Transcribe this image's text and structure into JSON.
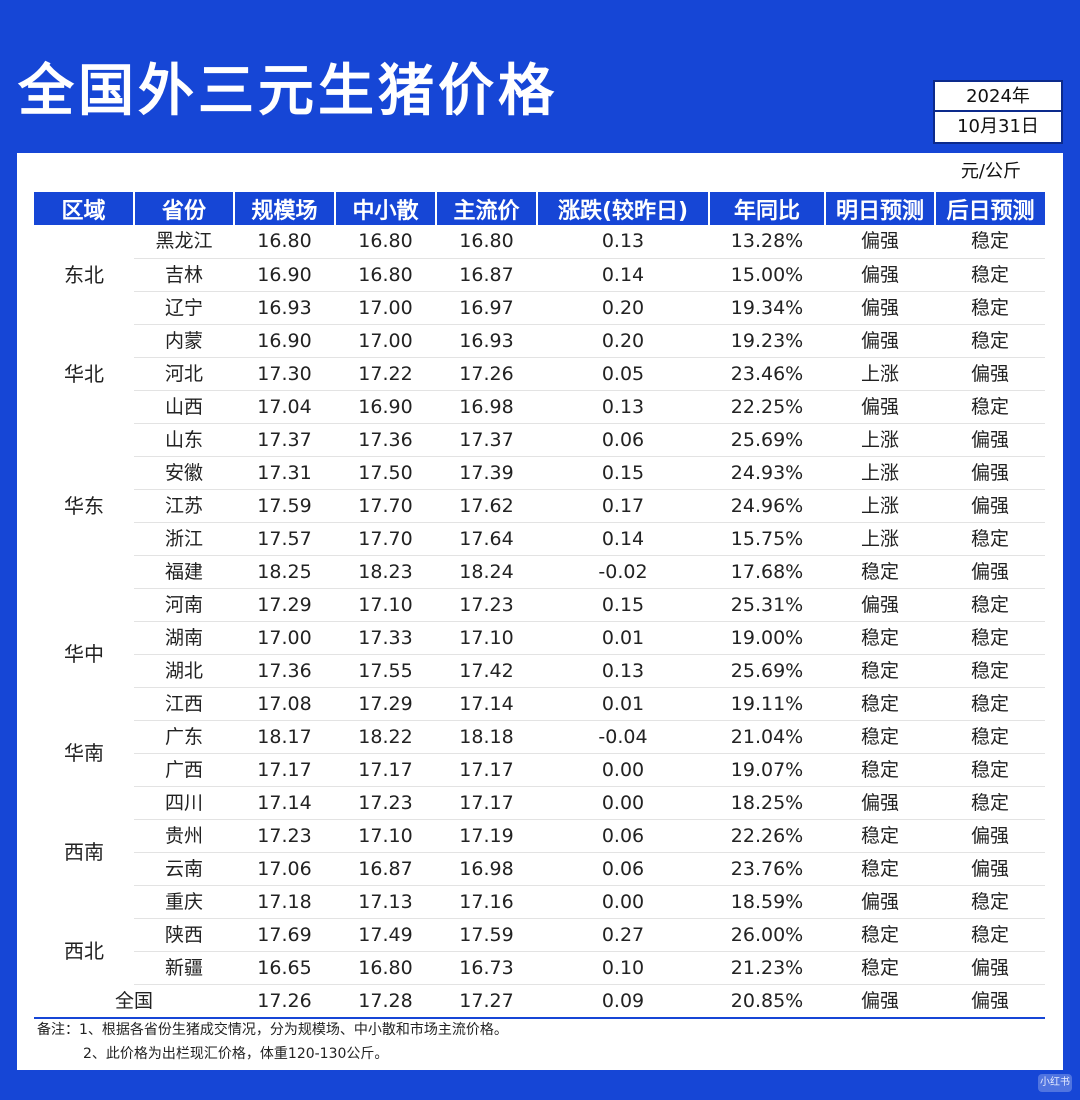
{
  "header": {
    "title": "全国外三元生猪价格"
  },
  "date": {
    "year": "2024年",
    "day": "10月31日"
  },
  "unit": "元/公斤",
  "colors": {
    "background": "#1646d6",
    "up": "#e0312c",
    "down": "#1a9a6a"
  },
  "chart_data": {
    "type": "table",
    "columns": [
      "区域",
      "省份",
      "规模场",
      "中小散",
      "主流价",
      "涨跌(较昨日)",
      "年同比",
      "明日预测",
      "后日预测"
    ],
    "regions": [
      {
        "name": "东北",
        "rows": 3
      },
      {
        "name": "华北",
        "rows": 3
      },
      {
        "name": "华东",
        "rows": 5
      },
      {
        "name": "华中",
        "rows": 4
      },
      {
        "name": "华南",
        "rows": 2
      },
      {
        "name": "西南",
        "rows": 4
      },
      {
        "name": "西北",
        "rows": 2
      }
    ],
    "rows": [
      {
        "province": "黑龙江",
        "large": "16.80",
        "small": "16.80",
        "main": "16.80",
        "change": "0.13",
        "yoy": "13.28%",
        "tomorrow": "偏强",
        "after": "稳定"
      },
      {
        "province": "吉林",
        "large": "16.90",
        "small": "16.80",
        "main": "16.87",
        "change": "0.14",
        "yoy": "15.00%",
        "tomorrow": "偏强",
        "after": "稳定"
      },
      {
        "province": "辽宁",
        "large": "16.93",
        "small": "17.00",
        "main": "16.97",
        "change": "0.20",
        "yoy": "19.34%",
        "tomorrow": "偏强",
        "after": "稳定"
      },
      {
        "province": "内蒙",
        "large": "16.90",
        "small": "17.00",
        "main": "16.93",
        "change": "0.20",
        "yoy": "19.23%",
        "tomorrow": "偏强",
        "after": "稳定"
      },
      {
        "province": "河北",
        "large": "17.30",
        "small": "17.22",
        "main": "17.26",
        "change": "0.05",
        "yoy": "23.46%",
        "tomorrow": "上涨",
        "after": "偏强"
      },
      {
        "province": "山西",
        "large": "17.04",
        "small": "16.90",
        "main": "16.98",
        "change": "0.13",
        "yoy": "22.25%",
        "tomorrow": "偏强",
        "after": "稳定"
      },
      {
        "province": "山东",
        "large": "17.37",
        "small": "17.36",
        "main": "17.37",
        "change": "0.06",
        "yoy": "25.69%",
        "tomorrow": "上涨",
        "after": "偏强"
      },
      {
        "province": "安徽",
        "large": "17.31",
        "small": "17.50",
        "main": "17.39",
        "change": "0.15",
        "yoy": "24.93%",
        "tomorrow": "上涨",
        "after": "偏强"
      },
      {
        "province": "江苏",
        "large": "17.59",
        "small": "17.70",
        "main": "17.62",
        "change": "0.17",
        "yoy": "24.96%",
        "tomorrow": "上涨",
        "after": "偏强"
      },
      {
        "province": "浙江",
        "large": "17.57",
        "small": "17.70",
        "main": "17.64",
        "change": "0.14",
        "yoy": "15.75%",
        "tomorrow": "上涨",
        "after": "稳定"
      },
      {
        "province": "福建",
        "large": "18.25",
        "small": "18.23",
        "main": "18.24",
        "change": "-0.02",
        "yoy": "17.68%",
        "tomorrow": "稳定",
        "after": "偏强"
      },
      {
        "province": "河南",
        "large": "17.29",
        "small": "17.10",
        "main": "17.23",
        "change": "0.15",
        "yoy": "25.31%",
        "tomorrow": "偏强",
        "after": "稳定"
      },
      {
        "province": "湖南",
        "large": "17.00",
        "small": "17.33",
        "main": "17.10",
        "change": "0.01",
        "yoy": "19.00%",
        "tomorrow": "稳定",
        "after": "稳定"
      },
      {
        "province": "湖北",
        "large": "17.36",
        "small": "17.55",
        "main": "17.42",
        "change": "0.13",
        "yoy": "25.69%",
        "tomorrow": "稳定",
        "after": "稳定"
      },
      {
        "province": "江西",
        "large": "17.08",
        "small": "17.29",
        "main": "17.14",
        "change": "0.01",
        "yoy": "19.11%",
        "tomorrow": "稳定",
        "after": "稳定"
      },
      {
        "province": "广东",
        "large": "18.17",
        "small": "18.22",
        "main": "18.18",
        "change": "-0.04",
        "yoy": "21.04%",
        "tomorrow": "稳定",
        "after": "稳定"
      },
      {
        "province": "广西",
        "large": "17.17",
        "small": "17.17",
        "main": "17.17",
        "change": "0.00",
        "yoy": "19.07%",
        "tomorrow": "稳定",
        "after": "稳定"
      },
      {
        "province": "四川",
        "large": "17.14",
        "small": "17.23",
        "main": "17.17",
        "change": "0.00",
        "yoy": "18.25%",
        "tomorrow": "偏强",
        "after": "稳定"
      },
      {
        "province": "贵州",
        "large": "17.23",
        "small": "17.10",
        "main": "17.19",
        "change": "0.06",
        "yoy": "22.26%",
        "tomorrow": "稳定",
        "after": "偏强"
      },
      {
        "province": "云南",
        "large": "17.06",
        "small": "16.87",
        "main": "16.98",
        "change": "0.06",
        "yoy": "23.76%",
        "tomorrow": "稳定",
        "after": "偏强"
      },
      {
        "province": "重庆",
        "large": "17.18",
        "small": "17.13",
        "main": "17.16",
        "change": "0.00",
        "yoy": "18.59%",
        "tomorrow": "偏强",
        "after": "稳定"
      },
      {
        "province": "陕西",
        "large": "17.69",
        "small": "17.49",
        "main": "17.59",
        "change": "0.27",
        "yoy": "26.00%",
        "tomorrow": "稳定",
        "after": "稳定"
      },
      {
        "province": "新疆",
        "large": "16.65",
        "small": "16.80",
        "main": "16.73",
        "change": "0.10",
        "yoy": "21.23%",
        "tomorrow": "稳定",
        "after": "偏强"
      }
    ],
    "total": {
      "label": "全国",
      "large": "17.26",
      "small": "17.28",
      "main": "17.27",
      "change": "0.09",
      "yoy": "20.85%",
      "tomorrow": "偏强",
      "after": "偏强"
    }
  },
  "notes": [
    "备注：1、根据各省份生猪成交情况，分为规模场、中小散和市场主流价格。",
    "2、此价格为出栏现汇价格，体重120-130公斤。"
  ],
  "watermark": "小红书"
}
